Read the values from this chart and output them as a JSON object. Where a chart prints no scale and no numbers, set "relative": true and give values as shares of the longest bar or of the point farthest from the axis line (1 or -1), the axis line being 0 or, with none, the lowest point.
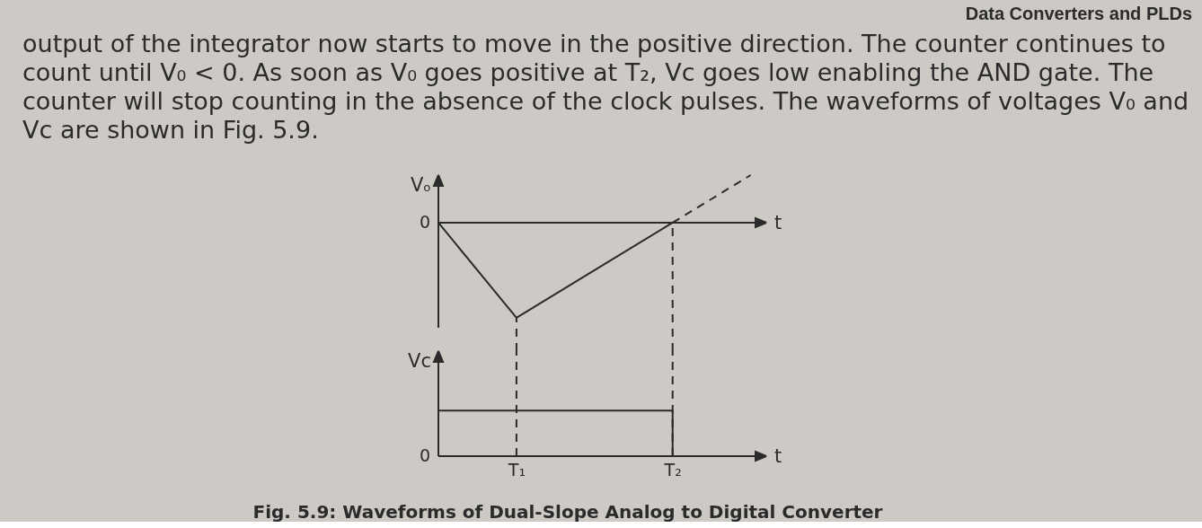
{
  "chart_data": [
    {
      "type": "line",
      "xlabel": "t",
      "ylabel": "Vₒ",
      "relative": true,
      "categories": [
        null,
        null,
        null,
        null,
        null
      ],
      "annotations": [
        "0",
        "Data Converters and PLDs",
        "output of the integrator now starts to move in the positive direction. The counter continues to",
        "count until V₀ < 0. As soon as V₀ goes positive at T₂, Vc goes low enabling the AND gate. The",
        "counter will stop counting in the absence of the clock pulses. The waveforms of voltages V₀ and",
        "Vc are shown in Fig. 5.9."
      ],
      "series": [
        {
          "color": "#2b2b2b",
          "values": [
            0,
            -1,
            -0.5,
            0,
            null
          ]
        },
        {
          "color": "#2b2b2b",
          "values": [
            null,
            null,
            null,
            0,
            0.5
          ],
          "line_style": "dashed"
        }
      ]
    },
    {
      "type": "step",
      "xlabel": "t",
      "ylabel": "Vc",
      "relative": true,
      "categories": [
        null,
        "T₁",
        null,
        "T₂",
        null
      ],
      "tick_labels": "x",
      "annotations": [
        "0",
        "Fig. 5.9: Waveforms of Dual-Slope Analog to Digital Converter"
      ],
      "series": [
        {
          "color": "#2b2b2b",
          "values": [
            1,
            1,
            1,
            0,
            null
          ]
        }
      ],
      "ref_lines": [
        {
          "axis": "x",
          "value": "T₁",
          "line_style": "dashed",
          "color": "#2b2b2b"
        },
        {
          "axis": "x",
          "value": "T₂",
          "line_style": "dashed",
          "color": "#2b2b2b"
        }
      ]
    }
  ]
}
